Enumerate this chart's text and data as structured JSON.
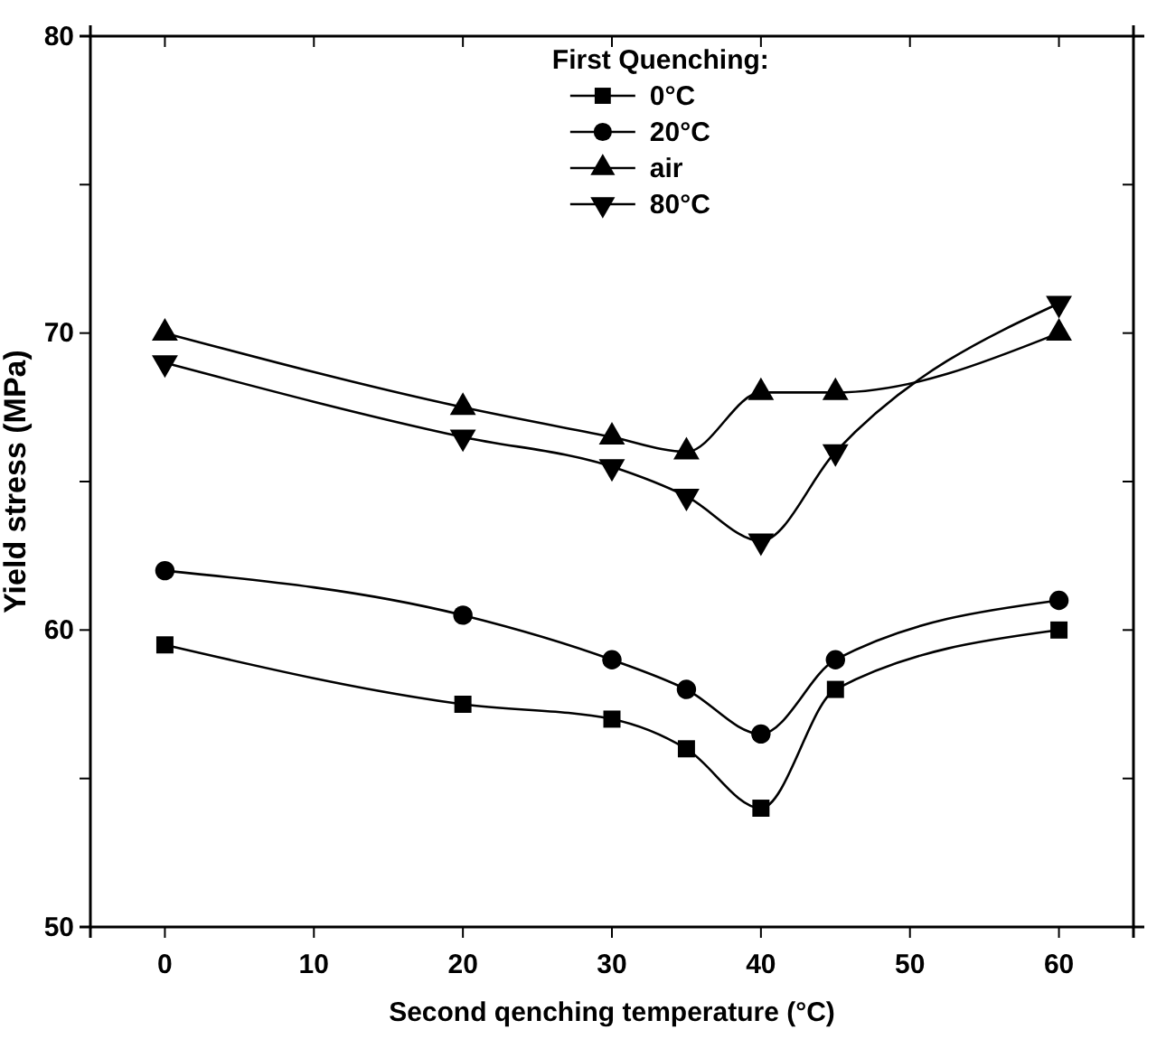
{
  "chart_data": {
    "type": "line",
    "xlabel": "Second qenching temperature (°C)",
    "ylabel": "Yield stress (MPa)",
    "legend_title": "First Quenching:",
    "legend": "top",
    "grid": false,
    "line_style": "solid",
    "x": [
      0,
      20,
      30,
      35,
      40,
      45,
      60
    ],
    "xlim": [
      -5,
      65
    ],
    "xticks": [
      0,
      10,
      20,
      30,
      40,
      50,
      60
    ],
    "ylim": [
      50,
      80
    ],
    "yticks": [
      50,
      {
        "value": 55,
        "label": null
      },
      60,
      {
        "value": 65,
        "label": null
      },
      70,
      {
        "value": 75,
        "label": null
      },
      80
    ],
    "series": [
      {
        "name": "0°C",
        "color": "#000000",
        "marker": "square",
        "values": [
          59.5,
          57.5,
          57,
          56,
          54,
          58,
          60
        ]
      },
      {
        "name": "20°C",
        "color": "#000000",
        "marker": "circle",
        "values": [
          62,
          60.5,
          59,
          58,
          56.5,
          59,
          61
        ]
      },
      {
        "name": "air",
        "color": "#000000",
        "marker": "triangle",
        "values": [
          70,
          67.5,
          66.5,
          66,
          68,
          68,
          70
        ]
      },
      {
        "name": "80°C",
        "color": "#000000",
        "marker": "triangle-down",
        "values": [
          69,
          66.5,
          65.5,
          64.5,
          63,
          66,
          71
        ]
      }
    ]
  }
}
